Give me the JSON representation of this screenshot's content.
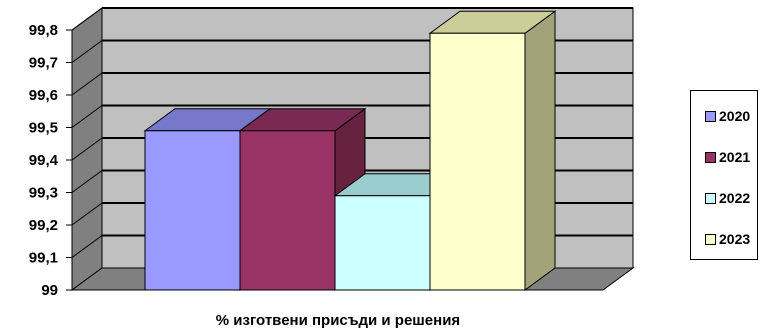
{
  "chart_data": {
    "type": "bar",
    "categories": [
      "% изготвени присъди и решения"
    ],
    "xlabel": "% изготвени присъди и решения",
    "ylim": [
      99,
      99.8
    ],
    "yticks": [
      "99",
      "99,1",
      "99,2",
      "99,3",
      "99,4",
      "99,5",
      "99,6",
      "99,7",
      "99,8"
    ],
    "grid": true,
    "legend": "right",
    "series": [
      {
        "name": "2020",
        "values": [
          99.49
        ],
        "color": "#9999ff",
        "top_color": "#7777cc",
        "side_color": "#6b6bb3"
      },
      {
        "name": "2021",
        "values": [
          99.49
        ],
        "color": "#993366",
        "top_color": "#7a2952",
        "side_color": "#66223f"
      },
      {
        "name": "2022",
        "values": [
          99.29
        ],
        "color": "#ccffff",
        "top_color": "#99cccc",
        "side_color": "#8fb3b3"
      },
      {
        "name": "2023",
        "values": [
          99.79
        ],
        "color": "#ffffcc",
        "top_color": "#cccc99",
        "side_color": "#a3a37a"
      }
    ]
  }
}
